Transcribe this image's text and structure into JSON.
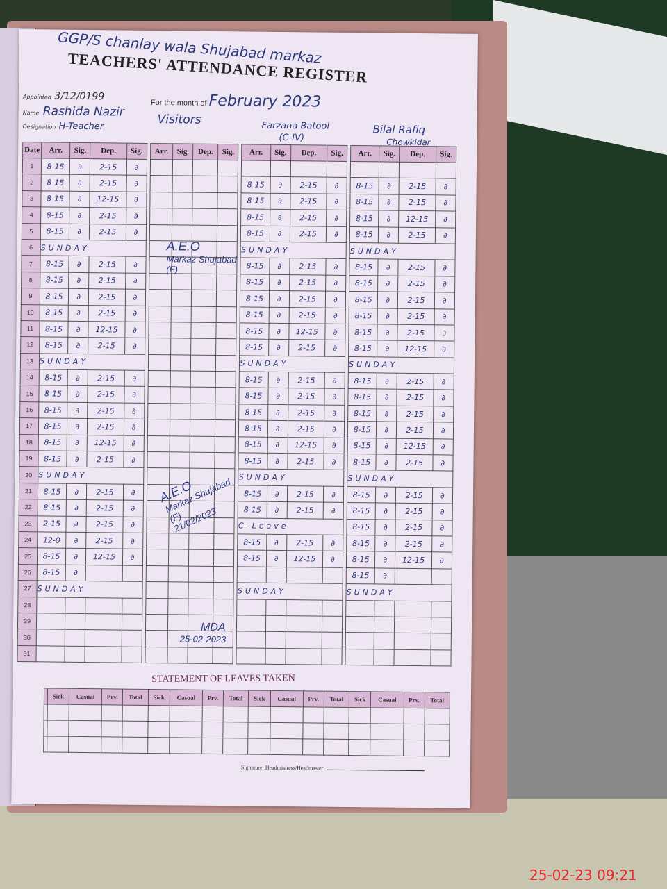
{
  "header": {
    "school_line": "GGP/S chanlay wala Shujabad markaz",
    "title": "TEACHERS' ATTENDANCE REGISTER",
    "appointed_label": "Appointed",
    "appointed_date": "3/12/0199",
    "month_label": "For the month of",
    "month_value": "February 2023"
  },
  "teachers": [
    {
      "name_label": "Name",
      "name": "Rashida Nazir",
      "designation_label": "Designation",
      "designation": "H-Teacher"
    },
    {
      "name": "Visitors"
    },
    {
      "name": "Farzana Batool",
      "designation": "(C-IV)"
    },
    {
      "name": "Bilal Rafiq",
      "designation": "Chowkidar"
    }
  ],
  "columns": {
    "date": "Date",
    "arr": "Arr.",
    "sig": "Sig.",
    "dep": "Dep."
  },
  "rows": [
    {
      "d": "1",
      "t1": [
        "8-15",
        "2-15"
      ],
      "t2": null,
      "t3": null
    },
    {
      "d": "2",
      "t1": [
        "8-15",
        "2-15"
      ],
      "t2": [
        "8-15",
        "2-15"
      ],
      "t3": [
        "8-15",
        "2-15"
      ]
    },
    {
      "d": "3",
      "t1": [
        "8-15",
        "12-15"
      ],
      "t2": [
        "8-15",
        "2-15"
      ],
      "t3": [
        "8-15",
        "2-15"
      ]
    },
    {
      "d": "4",
      "t1": [
        "8-15",
        "2-15"
      ],
      "t2": [
        "8-15",
        "2-15"
      ],
      "t3": [
        "8-15",
        "12-15"
      ]
    },
    {
      "d": "5",
      "t1": [
        "8-15",
        "2-15"
      ],
      "t2": [
        "8-15",
        "2-15"
      ],
      "t3": [
        "8-15",
        "2-15"
      ]
    },
    {
      "d": "6",
      "sunday": "SUNDAY"
    },
    {
      "d": "7",
      "t1": [
        "8-15",
        "2-15"
      ],
      "t2": [
        "8-15",
        "2-15"
      ],
      "t3": [
        "8-15",
        "2-15"
      ]
    },
    {
      "d": "8",
      "t1": [
        "8-15",
        "2-15"
      ],
      "t2": [
        "8-15",
        "2-15"
      ],
      "t3": [
        "8-15",
        "2-15"
      ]
    },
    {
      "d": "9",
      "t1": [
        "8-15",
        "2-15"
      ],
      "t2": [
        "8-15",
        "2-15"
      ],
      "t3": [
        "8-15",
        "2-15"
      ]
    },
    {
      "d": "10",
      "t1": [
        "8-15",
        "2-15"
      ],
      "t2": [
        "8-15",
        "2-15"
      ],
      "t3": [
        "8-15",
        "2-15"
      ]
    },
    {
      "d": "11",
      "t1": [
        "8-15",
        "12-15"
      ],
      "t2": [
        "8-15",
        "12-15"
      ],
      "t3": [
        "8-15",
        "2-15"
      ]
    },
    {
      "d": "12",
      "t1": [
        "8-15",
        "2-15"
      ],
      "t2": [
        "8-15",
        "2-15"
      ],
      "t3": [
        "8-15",
        "12-15"
      ]
    },
    {
      "d": "13",
      "sunday": "SUNDAY"
    },
    {
      "d": "14",
      "t1": [
        "8-15",
        "2-15"
      ],
      "t2": [
        "8-15",
        "2-15"
      ],
      "t3": [
        "8-15",
        "2-15"
      ]
    },
    {
      "d": "15",
      "t1": [
        "8-15",
        "2-15"
      ],
      "t2": [
        "8-15",
        "2-15"
      ],
      "t3": [
        "8-15",
        "2-15"
      ]
    },
    {
      "d": "16",
      "t1": [
        "8-15",
        "2-15"
      ],
      "t2": [
        "8-15",
        "2-15"
      ],
      "t3": [
        "8-15",
        "2-15"
      ]
    },
    {
      "d": "17",
      "t1": [
        "8-15",
        "2-15"
      ],
      "t2": [
        "8-15",
        "2-15"
      ],
      "t3": [
        "8-15",
        "2-15"
      ]
    },
    {
      "d": "18",
      "t1": [
        "8-15",
        "12-15"
      ],
      "t2": [
        "8-15",
        "12-15"
      ],
      "t3": [
        "8-15",
        "12-15"
      ]
    },
    {
      "d": "19",
      "t1": [
        "8-15",
        "2-15"
      ],
      "t2": [
        "8-15",
        "2-15"
      ],
      "t3": [
        "8-15",
        "2-15"
      ]
    },
    {
      "d": "20",
      "sunday": "SUNDAY"
    },
    {
      "d": "21",
      "t1": [
        "8-15",
        "2-15"
      ],
      "t2": [
        "8-15",
        "2-15"
      ],
      "t3": [
        "8-15",
        "2-15"
      ]
    },
    {
      "d": "22",
      "t1": [
        "8-15",
        "2-15"
      ],
      "t2": [
        "8-15",
        "2-15"
      ],
      "t3": [
        "8-15",
        "2-15"
      ]
    },
    {
      "d": "23",
      "t1": [
        "2-15",
        "2-15"
      ],
      "t2": "C-Leave",
      "t3": [
        "8-15",
        "2-15"
      ]
    },
    {
      "d": "24",
      "t1": [
        "12-0",
        "2-15"
      ],
      "t2": [
        "8-15",
        "2-15"
      ],
      "t3": [
        "8-15",
        "2-15"
      ]
    },
    {
      "d": "25",
      "t1": [
        "8-15",
        "12-15"
      ],
      "t2": [
        "8-15",
        "12-15"
      ],
      "t3": [
        "8-15",
        "12-15"
      ]
    },
    {
      "d": "26",
      "t1": [
        "8-15",
        ""
      ],
      "t2": null,
      "t3": [
        "8-15",
        ""
      ]
    },
    {
      "d": "27",
      "sunday": "SUNDAY"
    },
    {
      "d": "28"
    },
    {
      "d": "29"
    },
    {
      "d": "30"
    },
    {
      "d": "31"
    }
  ],
  "visitor_signatures": [
    {
      "title": "A.E.O",
      "place": "Markaz Shujabad",
      "suffix": "(F)"
    },
    {
      "title": "A.E.O",
      "place": "Markaz Shujabad",
      "suffix": "(F)",
      "date": "21/02/2023"
    },
    {
      "title": "MDA",
      "date": "25-02-2023"
    }
  ],
  "leaves": {
    "title": "STATEMENT OF LEAVES TAKEN",
    "columns": [
      "Sick",
      "Casual",
      "Prv.",
      "Total"
    ]
  },
  "signature_label": "Signature: Headmistress/Headmaster",
  "photo_timestamp": "25-02-23  09:21",
  "colors": {
    "ink": "#2a3a7a",
    "sunday_ink": "#a0306a",
    "header_fill": "#d9b8d6",
    "timestamp": "#e8282a"
  }
}
